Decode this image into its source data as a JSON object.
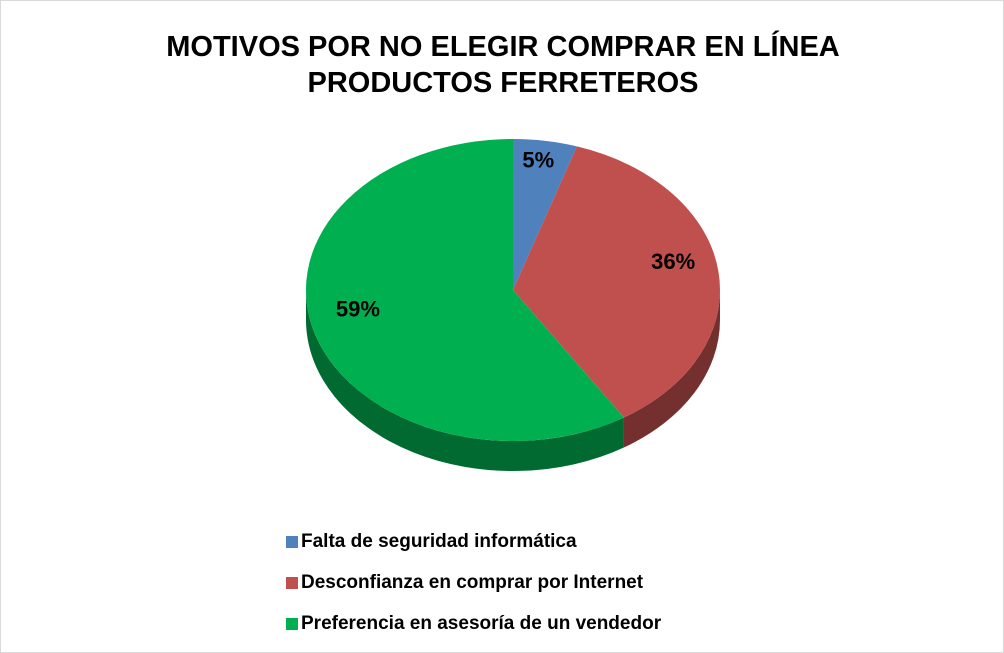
{
  "chart_data": {
    "type": "pie",
    "title": "MOTIVOS POR NO ELEGIR COMPRAR EN LÍNEA PRODUCTOS FERRETEROS",
    "categories": [
      "Falta de seguridad informática",
      "Desconfianza en comprar por Internet",
      "Preferencia en asesoría de un vendedor"
    ],
    "values": [
      5,
      36,
      59
    ],
    "value_labels": [
      "5%",
      "36%",
      "59%"
    ],
    "colors": [
      "#4f81bd",
      "#c0504d",
      "#00b050"
    ],
    "legend": "bottom"
  }
}
